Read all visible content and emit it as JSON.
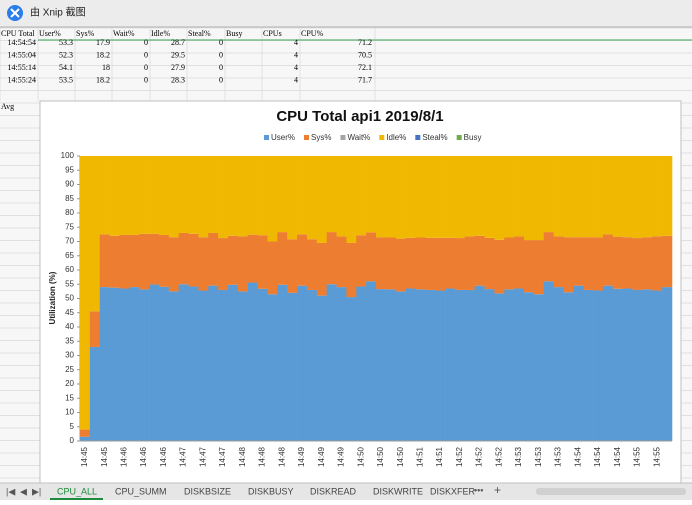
{
  "window": {
    "title": "由 Xnip 截图"
  },
  "sheet": {
    "header": [
      "CPU Total",
      "User%",
      "Sys%",
      "Wait%",
      "Idle%",
      "Steal%",
      "Busy",
      "CPUs",
      "CPU%"
    ],
    "rows": [
      [
        "14:54:54",
        "53.3",
        "17.9",
        "0",
        "28.7",
        "0",
        "",
        "4",
        "71.2"
      ],
      [
        "14:55:04",
        "52.3",
        "18.2",
        "0",
        "29.5",
        "0",
        "",
        "4",
        "70.5"
      ],
      [
        "14:55:14",
        "54.1",
        "18",
        "0",
        "27.9",
        "0",
        "",
        "4",
        "72.1"
      ],
      [
        "14:55:24",
        "53.5",
        "18.2",
        "0",
        "28.3",
        "0",
        "",
        "4",
        "71.7"
      ]
    ],
    "avg_label": "Avg"
  },
  "chart_data": {
    "type": "stacked_bar",
    "title": "CPU Total api1  2019/8/1",
    "ylabel": "Utilization (%)",
    "categories": [
      "14:45",
      null,
      "14:45",
      null,
      "14:46",
      null,
      "14:46",
      null,
      "14:46",
      null,
      "14:47",
      null,
      "14:47",
      null,
      "14:47",
      null,
      "14:48",
      null,
      "14:48",
      null,
      "14:48",
      null,
      "14:49",
      null,
      "14:49",
      null,
      "14:49",
      null,
      "14:50",
      null,
      "14:50",
      null,
      "14:50",
      null,
      "14:51",
      null,
      "14:51",
      null,
      "14:52",
      null,
      "14:52",
      null,
      "14:52",
      null,
      "14:53",
      null,
      "14:53",
      null,
      "14:53",
      null,
      "14:54",
      null,
      "14:54",
      null,
      "14:54",
      null,
      "14:55",
      null,
      "14:55",
      null
    ],
    "series": [
      {
        "name": "User%",
        "color": "#5b9bd5",
        "values": [
          1.5,
          33,
          54,
          53.8,
          53.5,
          54,
          53.2,
          54.9,
          54.1,
          52.5,
          55,
          54.2,
          52.8,
          54.5,
          53,
          54.8,
          52.5,
          55.6,
          53.4,
          51.5,
          54.8,
          52,
          54.5,
          53,
          51,
          55,
          54,
          50.5,
          54.2,
          56,
          53.3,
          53.2,
          52.5,
          53.5,
          53.2,
          53,
          52.8,
          53.5,
          53,
          53,
          54.5,
          53.3,
          51.8,
          53.2,
          53.5,
          52.2,
          51.5,
          56,
          54,
          52.2,
          54.5,
          53,
          52.8,
          54.5,
          53.4,
          53.5,
          53,
          53.2,
          52.8,
          54
        ]
      },
      {
        "name": "Sys%",
        "color": "#ed7d31",
        "values": [
          2.5,
          12.5,
          18.5,
          18.2,
          18.8,
          18.3,
          19.5,
          17.8,
          18.2,
          19,
          18,
          18.5,
          18.7,
          18.5,
          18.2,
          17.2,
          19.3,
          16.8,
          18.8,
          18.5,
          18.5,
          18.8,
          18,
          17.8,
          18.5,
          18.3,
          17.8,
          19,
          18,
          17.2,
          18.2,
          18.2,
          18.5,
          17.8,
          18.2,
          18.3,
          18.5,
          17.8,
          18.2,
          18.8,
          17.5,
          18,
          18.8,
          18.2,
          18.3,
          18.3,
          19,
          17.3,
          17.8,
          19.3,
          17,
          18.5,
          18.7,
          18,
          18.3,
          18,
          18.2,
          18.3,
          19,
          18
        ]
      },
      {
        "name": "Wait%",
        "color": "#a5a5a5",
        "values": [
          0,
          0,
          0,
          0,
          0,
          0,
          0,
          0,
          0,
          0,
          0,
          0,
          0,
          0,
          0,
          0,
          0,
          0,
          0,
          0,
          0,
          0,
          0,
          0,
          0,
          0,
          0,
          0,
          0,
          0,
          0,
          0,
          0,
          0,
          0,
          0,
          0,
          0,
          0,
          0,
          0,
          0,
          0,
          0,
          0,
          0,
          0,
          0,
          0,
          0,
          0,
          0,
          0,
          0,
          0,
          0,
          0,
          0,
          0,
          0
        ]
      },
      {
        "name": "Idle%",
        "color": "#f0b800",
        "values": [
          96,
          54.5,
          27.5,
          28,
          27.7,
          27.7,
          27.3,
          27.3,
          27.7,
          28.5,
          27,
          27.3,
          28.5,
          27,
          28.8,
          28,
          28.2,
          27.6,
          27.8,
          30,
          26.7,
          29.2,
          27.5,
          29.2,
          30.5,
          26.7,
          28.2,
          30.5,
          27.8,
          26.8,
          28.5,
          28.6,
          29,
          28.7,
          28.6,
          28.7,
          28.7,
          28.7,
          28.8,
          28.2,
          28,
          28.7,
          29.4,
          28.6,
          28.2,
          29.5,
          29.5,
          26.7,
          28.2,
          28.5,
          28.5,
          28.5,
          28.5,
          27.5,
          28.3,
          28.5,
          28.8,
          28.5,
          28.2,
          28
        ]
      },
      {
        "name": "Steal%",
        "color": "#4472c4",
        "values": [
          0,
          0,
          0,
          0,
          0,
          0,
          0,
          0,
          0,
          0,
          0,
          0,
          0,
          0,
          0,
          0,
          0,
          0,
          0,
          0,
          0,
          0,
          0,
          0,
          0,
          0,
          0,
          0,
          0,
          0,
          0,
          0,
          0,
          0,
          0,
          0,
          0,
          0,
          0,
          0,
          0,
          0,
          0,
          0,
          0,
          0,
          0,
          0,
          0,
          0,
          0,
          0,
          0,
          0,
          0,
          0,
          0,
          0,
          0,
          0
        ]
      },
      {
        "name": "Busy",
        "color": "#70ad47",
        "values": [
          0,
          0,
          0,
          0,
          0,
          0,
          0,
          0,
          0,
          0,
          0,
          0,
          0,
          0,
          0,
          0,
          0,
          0,
          0,
          0,
          0,
          0,
          0,
          0,
          0,
          0,
          0,
          0,
          0,
          0,
          0,
          0,
          0,
          0,
          0,
          0,
          0,
          0,
          0,
          0,
          0,
          0,
          0,
          0,
          0,
          0,
          0,
          0,
          0,
          0,
          0,
          0,
          0,
          0,
          0,
          0,
          0,
          0,
          0,
          0
        ]
      }
    ],
    "ylim": [
      0,
      100
    ],
    "yticks": [
      0,
      5,
      10,
      15,
      20,
      25,
      30,
      35,
      40,
      45,
      50,
      55,
      60,
      65,
      70,
      75,
      80,
      85,
      90,
      95,
      100
    ],
    "legend": "top"
  },
  "tabs": [
    "CPU_ALL",
    "CPU_SUMM",
    "DISKBSIZE",
    "DISKBUSY",
    "DISKREAD",
    "DISKWRITE",
    "DISKXFER"
  ]
}
